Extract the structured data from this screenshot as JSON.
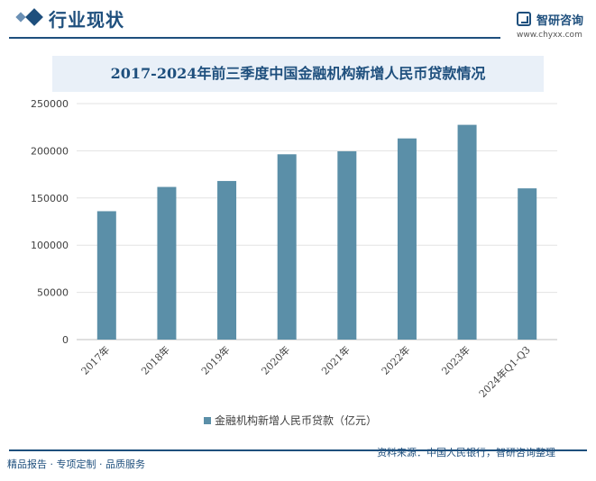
{
  "header": {
    "section_title": "行业现状",
    "logo_name": "智研咨询",
    "logo_url": "www.chyxx.com"
  },
  "colors": {
    "brand": "#1e4f7d",
    "bar": "#5b8fa8",
    "title_band": "#e9f0f8"
  },
  "chart_data": {
    "type": "bar",
    "title": "2017-2024年前三季度中国金融机构新增人民币贷款情况",
    "categories": [
      "2017年",
      "2018年",
      "2019年",
      "2020年",
      "2021年",
      "2022年",
      "2023年",
      "2024年Q1-Q3"
    ],
    "series": [
      {
        "name": "金融机构新增人民币贷款（亿元）",
        "values": [
          136000,
          161700,
          168000,
          196300,
          199500,
          213100,
          227500,
          160200
        ]
      }
    ],
    "ylim": [
      0,
      250000
    ],
    "yticks": [
      0,
      50000,
      100000,
      150000,
      200000,
      250000
    ],
    "grid": true,
    "legend_position": "bottom"
  },
  "footer": {
    "left": "精品报告 · 专项定制 · 品质服务",
    "source": "资料来源：中国人民银行，智研咨询整理"
  }
}
